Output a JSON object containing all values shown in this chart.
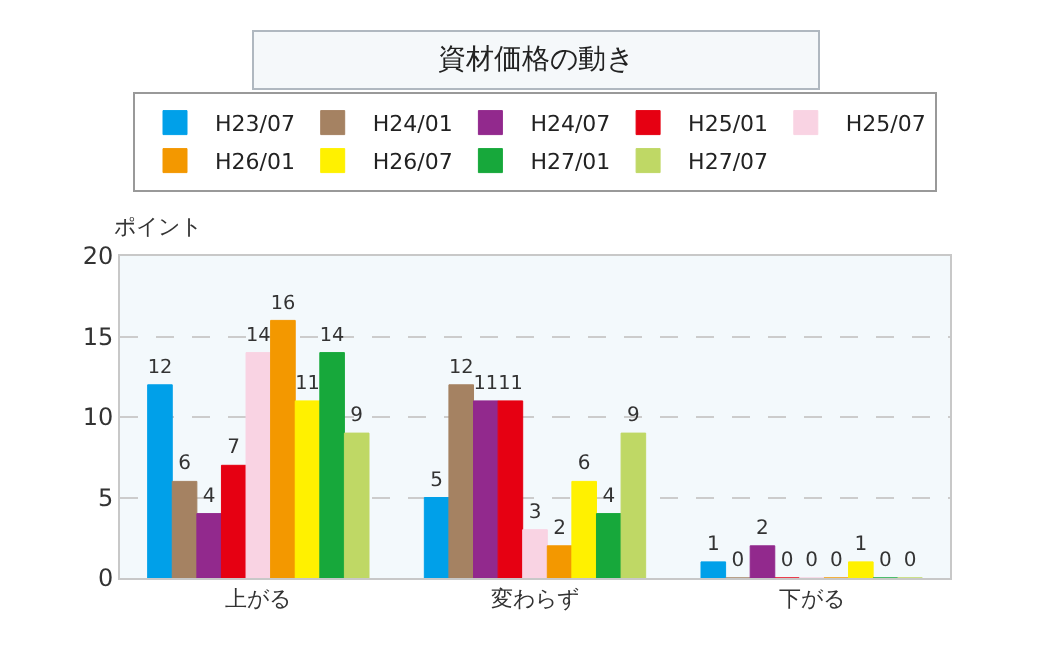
{
  "chart_data": {
    "type": "bar",
    "title": "資材価格の動き",
    "ylabel": "ポイント",
    "categories": [
      "上がる",
      "変わらず",
      "下がる"
    ],
    "series": [
      {
        "name": "H23/07",
        "color": "#00a0e9",
        "values": [
          12,
          5,
          1
        ]
      },
      {
        "name": "H24/01",
        "color": "#a58262",
        "values": [
          6,
          12,
          0
        ]
      },
      {
        "name": "H24/07",
        "color": "#92298d",
        "values": [
          4,
          11,
          2
        ]
      },
      {
        "name": "H25/01",
        "color": "#e60012",
        "values": [
          7,
          11,
          0
        ]
      },
      {
        "name": "H25/07",
        "color": "#f9d3e3",
        "values": [
          14,
          3,
          0
        ]
      },
      {
        "name": "H26/01",
        "color": "#f39800",
        "values": [
          16,
          2,
          0
        ]
      },
      {
        "name": "H26/07",
        "color": "#fff100",
        "values": [
          11,
          6,
          1
        ]
      },
      {
        "name": "H27/01",
        "color": "#17a83b",
        "values": [
          14,
          4,
          0
        ]
      },
      {
        "name": "H27/07",
        "color": "#bfd865",
        "values": [
          9,
          9,
          0
        ]
      }
    ],
    "ylim": [
      0,
      20
    ],
    "yticks": [
      0,
      5,
      10,
      15,
      20
    ],
    "grid": "y",
    "legend": "top",
    "data_labels": true
  }
}
